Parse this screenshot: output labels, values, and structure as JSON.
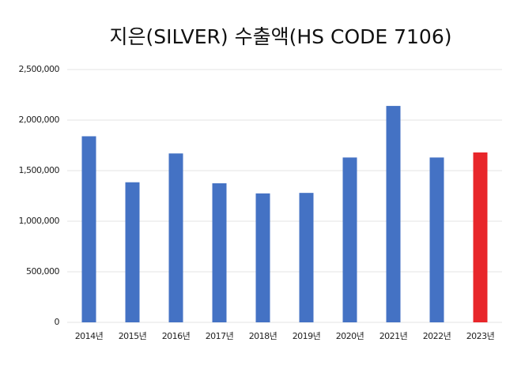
{
  "chart_data": {
    "type": "bar",
    "title": "지은(SILVER) 수출액(HS CODE 7106)",
    "categories": [
      "2014년",
      "2015년",
      "2016년",
      "2017년",
      "2018년",
      "2019년",
      "2020년",
      "2021년",
      "2022년",
      "2023년"
    ],
    "values": [
      1840000,
      1385000,
      1670000,
      1375000,
      1275000,
      1280000,
      1630000,
      2140000,
      1630000,
      1680000
    ],
    "colors": [
      "#4472c4",
      "#4472c4",
      "#4472c4",
      "#4472c4",
      "#4472c4",
      "#4472c4",
      "#4472c4",
      "#4472c4",
      "#4472c4",
      "#e8262a"
    ],
    "ylim": [
      0,
      2500000
    ],
    "yticks": [
      0,
      {
        "value": 500000,
        "label": "500,000"
      },
      {
        "value": 1000000,
        "label": "1,000,000"
      },
      {
        "value": 1500000,
        "label": "1,500,000"
      },
      {
        "value": 2000000,
        "label": "2,000,000"
      },
      {
        "value": 2500000,
        "label": "2,500,000"
      }
    ],
    "grid": true
  }
}
